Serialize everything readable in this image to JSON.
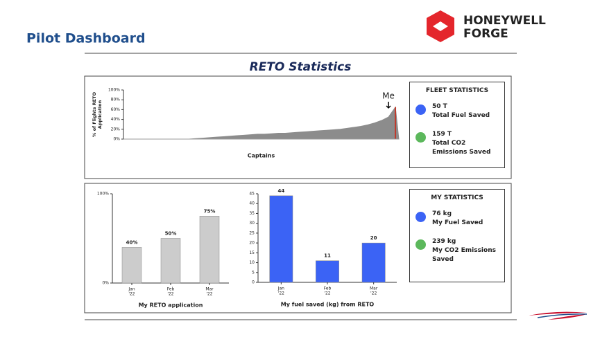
{
  "header": {
    "title": "Pilot Dashboard",
    "logo": [
      "HONEYWELL",
      "FORGE"
    ]
  },
  "heading": "RETO Statistics",
  "chart_data": [
    {
      "type": "area",
      "ylabel": [
        "% of Flights RETO",
        "Application"
      ],
      "xlabel": "Captains",
      "values": [
        0,
        0,
        0,
        0,
        0,
        0,
        0,
        0,
        0,
        0,
        1,
        2,
        3,
        4,
        5,
        6,
        7,
        8,
        9,
        10,
        10,
        11,
        12,
        12,
        13,
        14,
        15,
        16,
        17,
        18,
        19,
        20,
        22,
        24,
        26,
        29,
        33,
        38,
        45,
        65
      ],
      "color": "#8c8c8c",
      "annotation": "Me",
      "highlight_color": "#c0392b",
      "ylim": [
        0,
        100
      ],
      "yticks": [
        {
          "value": 0,
          "label": "0%"
        },
        {
          "value": 20,
          "label": "20%"
        },
        {
          "value": 40,
          "label": "40%"
        },
        {
          "value": 60,
          "label": "60%"
        },
        {
          "value": 80,
          "label": "80%"
        },
        {
          "value": 100,
          "label": "100%"
        }
      ]
    },
    {
      "type": "bar",
      "title": "My RETO application",
      "categories": [
        [
          "Jan",
          "'22"
        ],
        [
          "Feb",
          "'22"
        ],
        [
          "Mar",
          "'22"
        ]
      ],
      "values": [
        40,
        50,
        75
      ],
      "value_labels": [
        "40%",
        "50%",
        "75%"
      ],
      "color": "#cccccc",
      "ylim": [
        0,
        100
      ],
      "yticks": [
        {
          "value": 0,
          "label": "0%"
        },
        {
          "value": 100,
          "label": "100%"
        }
      ]
    },
    {
      "type": "bar",
      "title": "My fuel saved (kg) from RETO",
      "categories": [
        [
          "Jan",
          "'22"
        ],
        [
          "Feb",
          "'22"
        ],
        [
          "Mar",
          "'22"
        ]
      ],
      "values": [
        44,
        11,
        20
      ],
      "color": "#3b63f5",
      "ylim": [
        0,
        45
      ],
      "yticks": [
        0,
        5,
        10,
        15,
        20,
        25,
        30,
        35,
        40,
        45
      ]
    }
  ],
  "fleet_statistics": {
    "title": "FLEET STATISTICS",
    "items": [
      {
        "value": "50 T",
        "label": "Total Fuel Saved",
        "color": "#3b63f5"
      },
      {
        "value": "159 T",
        "label": "Total CO2 Emissions Saved",
        "color": "#5cb85c"
      }
    ]
  },
  "my_statistics": {
    "title": "MY STATISTICS",
    "items": [
      {
        "value": "76 kg",
        "label": "My Fuel Saved",
        "color": "#3b63f5"
      },
      {
        "value": "239 kg",
        "label": "My CO2 Emissions Saved",
        "color": "#5cb85c"
      }
    ]
  }
}
